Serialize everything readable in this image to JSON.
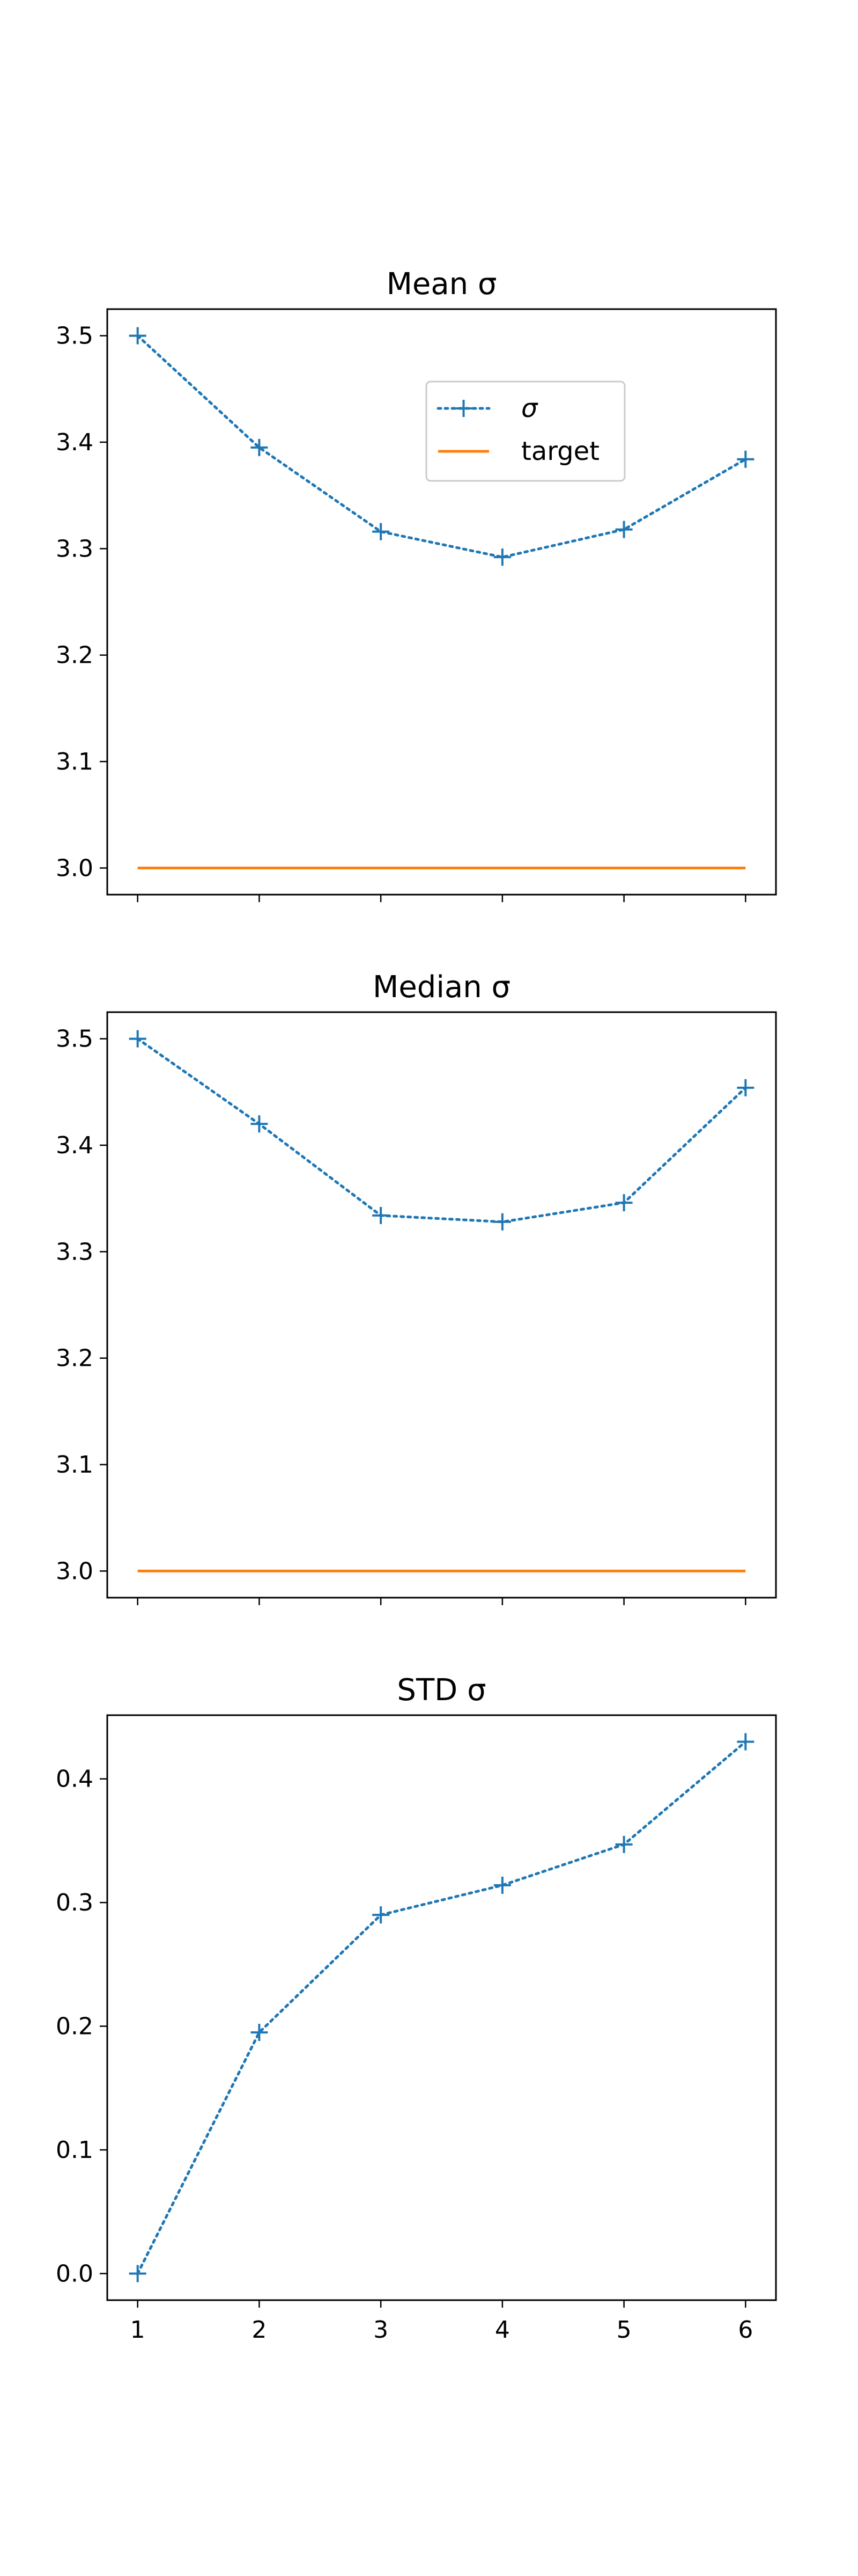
{
  "chart_data": [
    {
      "type": "line",
      "title": "Mean σ",
      "x": [
        1,
        2,
        3,
        4,
        5,
        6
      ],
      "ylim": [
        2.975,
        3.525
      ],
      "yticks": [
        "3.0",
        "3.1",
        "3.2",
        "3.3",
        "3.4",
        "3.5"
      ],
      "yticks_values": [
        3.0,
        3.1,
        3.2,
        3.3,
        3.4,
        3.5
      ],
      "show_x_tick_labels": false,
      "grid": false,
      "legend": {
        "placement": "upper-center",
        "entries": [
          {
            "label": "σ",
            "series": "sigma"
          },
          {
            "label": "target",
            "series": "target"
          }
        ]
      },
      "series": [
        {
          "name": "σ",
          "key": "sigma",
          "values": [
            3.5,
            3.395,
            3.316,
            3.292,
            3.318,
            3.384
          ],
          "color": "#1f77b4",
          "style": "dotted",
          "marker": "+"
        },
        {
          "name": "target",
          "key": "target",
          "values": [
            3.0,
            3.0,
            3.0,
            3.0,
            3.0,
            3.0
          ],
          "color": "#ff7f0e",
          "style": "solid",
          "marker": "none"
        }
      ]
    },
    {
      "type": "line",
      "title": "Median σ",
      "x": [
        1,
        2,
        3,
        4,
        5,
        6
      ],
      "ylim": [
        2.975,
        3.525
      ],
      "yticks": [
        "3.0",
        "3.1",
        "3.2",
        "3.3",
        "3.4",
        "3.5"
      ],
      "yticks_values": [
        3.0,
        3.1,
        3.2,
        3.3,
        3.4,
        3.5
      ],
      "show_x_tick_labels": false,
      "grid": false,
      "series": [
        {
          "name": "σ",
          "key": "sigma",
          "values": [
            3.5,
            3.42,
            3.334,
            3.328,
            3.346,
            3.454
          ],
          "color": "#1f77b4",
          "style": "dotted",
          "marker": "+"
        },
        {
          "name": "target",
          "key": "target",
          "values": [
            3.0,
            3.0,
            3.0,
            3.0,
            3.0,
            3.0
          ],
          "color": "#ff7f0e",
          "style": "solid",
          "marker": "none"
        }
      ]
    },
    {
      "type": "line",
      "title": "STD σ",
      "x": [
        1,
        2,
        3,
        4,
        5,
        6
      ],
      "ylim": [
        -0.0215,
        0.4515
      ],
      "yticks": [
        "0.0",
        "0.1",
        "0.2",
        "0.3",
        "0.4"
      ],
      "yticks_values": [
        0.0,
        0.1,
        0.2,
        0.3,
        0.4
      ],
      "xticks": [
        "1",
        "2",
        "3",
        "4",
        "5",
        "6"
      ],
      "show_x_tick_labels": true,
      "grid": false,
      "series": [
        {
          "name": "σ",
          "key": "sigma",
          "values": [
            0.0,
            0.195,
            0.29,
            0.314,
            0.347,
            0.43
          ],
          "color": "#1f77b4",
          "style": "dotted",
          "marker": "+"
        }
      ]
    }
  ]
}
